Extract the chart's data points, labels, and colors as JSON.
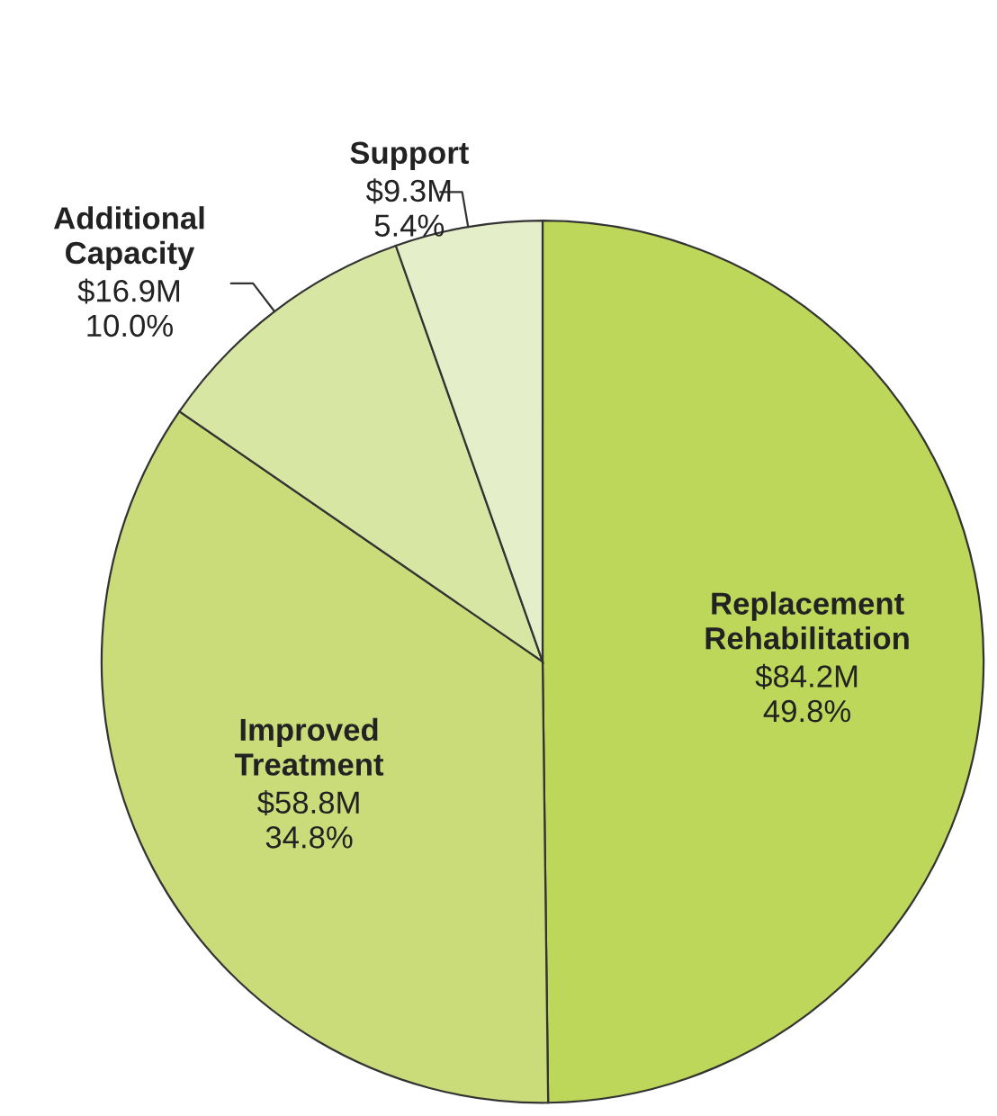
{
  "chart_data": {
    "type": "pie",
    "categories": [
      "Replacement\nRehabilitation",
      "Improved\nTreatment",
      "Additional\nCapacity",
      "Support"
    ],
    "values": [
      49.8,
      34.8,
      10.0,
      5.4
    ],
    "value_labels": [
      "$84.2M\n49.8%",
      "$58.8M\n34.8%",
      "$16.9M\n10.0%",
      "$9.3M\n5.4%"
    ],
    "colors": [
      "#bdd75a",
      "#cadb7a",
      "#d8e6a3",
      "#e4eec8"
    ]
  }
}
